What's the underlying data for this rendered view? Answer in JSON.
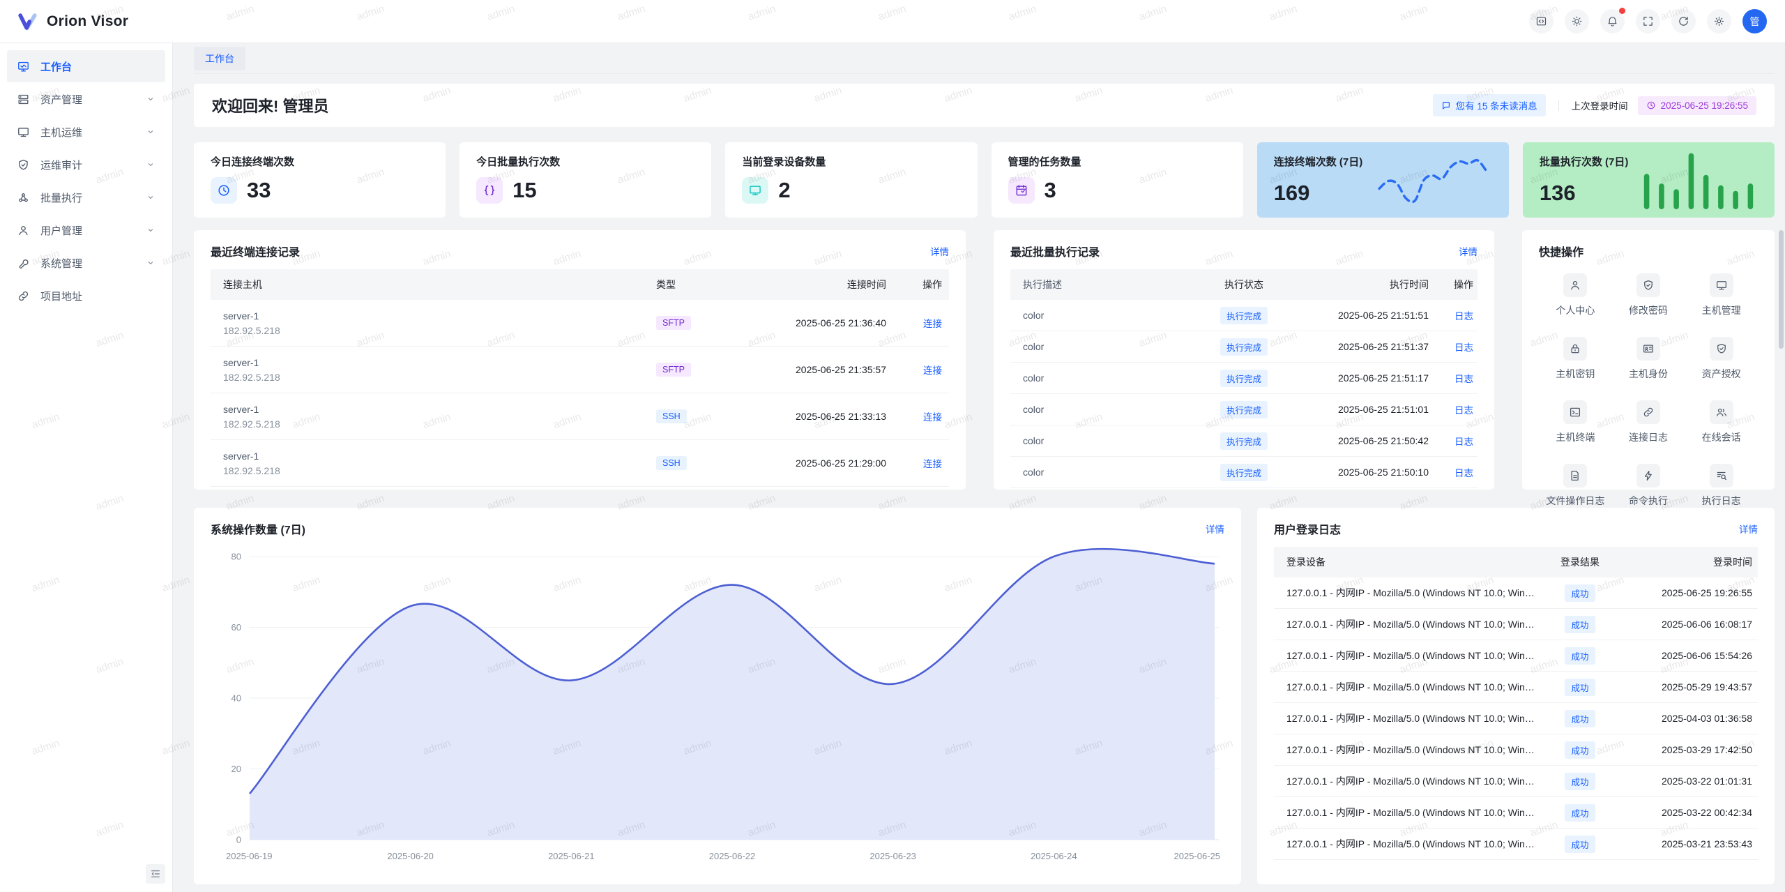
{
  "app": {
    "name": "Orion Visor",
    "avatar_text": "管"
  },
  "header": {
    "buttons": [
      "code",
      "theme",
      "notifications",
      "fullscreen",
      "refresh",
      "settings"
    ],
    "notification_dot_color": "#f53f3f",
    "avatar_color": "#2468f2"
  },
  "sidebar": {
    "items": [
      {
        "label": "工作台",
        "icon": "workbench",
        "active": true,
        "chevron": false
      },
      {
        "label": "资产管理",
        "icon": "assets",
        "active": false,
        "chevron": true
      },
      {
        "label": "主机运维",
        "icon": "host",
        "active": false,
        "chevron": true
      },
      {
        "label": "运维审计",
        "icon": "shield",
        "active": false,
        "chevron": true
      },
      {
        "label": "批量执行",
        "icon": "cluster",
        "active": false,
        "chevron": true
      },
      {
        "label": "用户管理",
        "icon": "user",
        "active": false,
        "chevron": true
      },
      {
        "label": "系统管理",
        "icon": "wrench",
        "active": false,
        "chevron": true
      },
      {
        "label": "项目地址",
        "icon": "link",
        "active": false,
        "chevron": false
      }
    ]
  },
  "breadcrumb": {
    "current": "工作台"
  },
  "welcome": {
    "title": "欢迎回来! 管理员",
    "unread_badge": "您有 15 条未读消息",
    "last_login_label": "上次登录时间",
    "last_login_time": "2025-06-25 19:26:55"
  },
  "stats": [
    {
      "label": "今日连接终端次数",
      "value": "33",
      "icon": "clock",
      "icon_color": "#165dff",
      "icon_bg": "#e8f3ff",
      "type": "plain"
    },
    {
      "label": "今日批量执行次数",
      "value": "15",
      "icon": "braces",
      "icon_color": "#722ed1",
      "icon_bg": "#f5e8ff",
      "type": "plain"
    },
    {
      "label": "当前登录设备数量",
      "value": "2",
      "icon": "host",
      "icon_color": "#0fc6c2",
      "icon_bg": "#dcf8f5",
      "type": "plain"
    },
    {
      "label": "管理的任务数量",
      "value": "3",
      "icon": "task",
      "icon_color": "#722ed1",
      "icon_bg": "#f5e8ff",
      "type": "plain"
    },
    {
      "label": "连接终端次数 (7日)",
      "value": "169",
      "type": "spark",
      "bg": "#b9dbf6",
      "chart_id": "connections-sparkline"
    },
    {
      "label": "批量执行次数 (7日)",
      "value": "136",
      "type": "bars",
      "bg": "#b4edc4",
      "chart_id": "executions-bars"
    }
  ],
  "terminal_panel": {
    "title": "最近终端连接记录",
    "detail": "详情",
    "columns": [
      "连接主机",
      "类型",
      "连接时间",
      "操作"
    ],
    "rows": [
      {
        "host": "server-1",
        "ip": "182.92.5.218",
        "type": "SFTP",
        "type_style": "purple",
        "time": "2025-06-25 21:36:40",
        "action": "连接"
      },
      {
        "host": "server-1",
        "ip": "182.92.5.218",
        "type": "SFTP",
        "type_style": "purple",
        "time": "2025-06-25 21:35:57",
        "action": "连接"
      },
      {
        "host": "server-1",
        "ip": "182.92.5.218",
        "type": "SSH",
        "type_style": "blue",
        "time": "2025-06-25 21:33:13",
        "action": "连接"
      },
      {
        "host": "server-1",
        "ip": "182.92.5.218",
        "type": "SSH",
        "type_style": "blue",
        "time": "2025-06-25 21:29:00",
        "action": "连接"
      }
    ]
  },
  "batch_panel": {
    "title": "最近批量执行记录",
    "detail": "详情",
    "columns": [
      "执行描述",
      "执行状态",
      "执行时间",
      "操作"
    ],
    "rows": [
      {
        "desc": "color",
        "status": "执行完成",
        "time": "2025-06-25 21:51:51",
        "action": "日志"
      },
      {
        "desc": "color",
        "status": "执行完成",
        "time": "2025-06-25 21:51:37",
        "action": "日志"
      },
      {
        "desc": "color",
        "status": "执行完成",
        "time": "2025-06-25 21:51:17",
        "action": "日志"
      },
      {
        "desc": "color",
        "status": "执行完成",
        "time": "2025-06-25 21:51:01",
        "action": "日志"
      },
      {
        "desc": "color",
        "status": "执行完成",
        "time": "2025-06-25 21:50:42",
        "action": "日志"
      },
      {
        "desc": "color",
        "status": "执行完成",
        "time": "2025-06-25 21:50:10",
        "action": "日志"
      }
    ]
  },
  "quick_panel": {
    "title": "快捷操作",
    "items": [
      {
        "label": "个人中心",
        "icon": "user"
      },
      {
        "label": "修改密码",
        "icon": "shield"
      },
      {
        "label": "主机管理",
        "icon": "host"
      },
      {
        "label": "主机密钥",
        "icon": "lock"
      },
      {
        "label": "主机身份",
        "icon": "idcard"
      },
      {
        "label": "资产授权",
        "icon": "shield"
      },
      {
        "label": "主机终端",
        "icon": "terminal"
      },
      {
        "label": "连接日志",
        "icon": "link"
      },
      {
        "label": "在线会话",
        "icon": "users"
      },
      {
        "label": "文件操作日志",
        "icon": "file"
      },
      {
        "label": "命令执行",
        "icon": "bolt"
      },
      {
        "label": "执行日志",
        "icon": "searchdoc"
      }
    ]
  },
  "ops_panel": {
    "title": "系统操作数量 (7日)",
    "detail": "详情"
  },
  "login_panel": {
    "title": "用户登录日志",
    "detail": "详情",
    "columns": [
      "登录设备",
      "登录结果",
      "登录时间"
    ],
    "rows": [
      {
        "device": "127.0.0.1 - 内网IP - Mozilla/5.0 (Windows NT 10.0; Win64;...",
        "result": "成功",
        "time": "2025-06-25 19:26:55"
      },
      {
        "device": "127.0.0.1 - 内网IP - Mozilla/5.0 (Windows NT 10.0; Win64;...",
        "result": "成功",
        "time": "2025-06-06 16:08:17"
      },
      {
        "device": "127.0.0.1 - 内网IP - Mozilla/5.0 (Windows NT 10.0; Win64;...",
        "result": "成功",
        "time": "2025-06-06 15:54:26"
      },
      {
        "device": "127.0.0.1 - 内网IP - Mozilla/5.0 (Windows NT 10.0; Win64;...",
        "result": "成功",
        "time": "2025-05-29 19:43:57"
      },
      {
        "device": "127.0.0.1 - 内网IP - Mozilla/5.0 (Windows NT 10.0; Win64;...",
        "result": "成功",
        "time": "2025-04-03 01:36:58"
      },
      {
        "device": "127.0.0.1 - 内网IP - Mozilla/5.0 (Windows NT 10.0; Win64;...",
        "result": "成功",
        "time": "2025-03-29 17:42:50"
      },
      {
        "device": "127.0.0.1 - 内网IP - Mozilla/5.0 (Windows NT 10.0; Win64;...",
        "result": "成功",
        "time": "2025-03-22 01:01:31"
      },
      {
        "device": "127.0.0.1 - 内网IP - Mozilla/5.0 (Windows NT 10.0; Win64;...",
        "result": "成功",
        "time": "2025-03-22 00:42:34"
      },
      {
        "device": "127.0.0.1 - 内网IP - Mozilla/5.0 (Windows NT 10.0; Win64;...",
        "result": "成功",
        "time": "2025-03-21 23:53:43"
      }
    ]
  },
  "chart_data": [
    {
      "id": "connections-sparkline",
      "type": "line",
      "title": "连接终端次数 (7日)",
      "total": 169,
      "line_style": "dashed",
      "color": "#2a6cf5",
      "values_relative": [
        34,
        48,
        43,
        16,
        12,
        50,
        58,
        52,
        74,
        84,
        80,
        86,
        66
      ]
    },
    {
      "id": "executions-bars",
      "type": "bar",
      "title": "批量执行次数 (7日)",
      "total": 136,
      "color": "#27a34c",
      "values_relative": [
        62,
        45,
        35,
        98,
        60,
        42,
        32,
        45
      ]
    },
    {
      "id": "system-operations",
      "type": "area",
      "title": "系统操作数量 (7日)",
      "x": [
        "2025-06-19",
        "2025-06-20",
        "2025-06-21",
        "2025-06-22",
        "2025-06-23",
        "2025-06-24",
        "2025-06-25"
      ],
      "values": [
        13,
        66,
        45,
        72,
        44,
        80,
        78
      ],
      "ylim": [
        0,
        80
      ],
      "yticks": [
        0,
        20,
        40,
        60,
        80
      ],
      "grid": true,
      "legend": false,
      "line_color": "#4c5fd3",
      "fill_color": "#e3e7fa"
    }
  ],
  "watermark": {
    "text": "admin"
  },
  "colors": {
    "accent": "#165dff",
    "purple": "#722ed1",
    "success_bg": "#e8f3ff"
  }
}
